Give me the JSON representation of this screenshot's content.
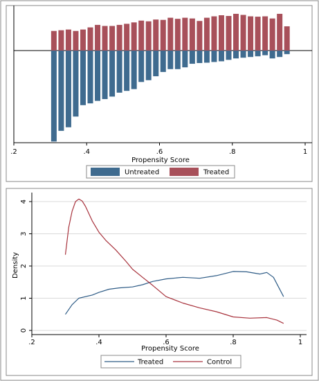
{
  "chart_data": [
    {
      "type": "bar",
      "title": "",
      "xlabel": "Propensity Score",
      "ylabel": "",
      "xlim": [
        0.2,
        1.0
      ],
      "xticks": [
        ".2",
        ".4",
        ".6",
        ".8",
        "1"
      ],
      "grid": false,
      "legend_position": "bottom",
      "legend": [
        "Untreated",
        "Treated"
      ],
      "colors": {
        "Untreated": "#3f6b8f",
        "Treated": "#a8505a"
      },
      "x": [
        0.31,
        0.33,
        0.35,
        0.37,
        0.39,
        0.41,
        0.43,
        0.45,
        0.47,
        0.49,
        0.51,
        0.53,
        0.55,
        0.57,
        0.59,
        0.61,
        0.63,
        0.65,
        0.67,
        0.69,
        0.71,
        0.73,
        0.75,
        0.77,
        0.79,
        0.81,
        0.83,
        0.85,
        0.87,
        0.89,
        0.91,
        0.93,
        0.95
      ],
      "series": [
        {
          "name": "Treated",
          "values": [
            0.55,
            0.57,
            0.59,
            0.55,
            0.59,
            0.65,
            0.72,
            0.69,
            0.69,
            0.72,
            0.75,
            0.79,
            0.84,
            0.82,
            0.87,
            0.86,
            0.92,
            0.89,
            0.92,
            0.9,
            0.83,
            0.92,
            0.96,
            0.99,
            0.97,
            1.03,
            1.0,
            0.96,
            0.95,
            0.96,
            0.9,
            1.03,
            0.68
          ]
        },
        {
          "name": "Untreated",
          "values": [
            2.55,
            2.25,
            2.15,
            1.85,
            1.53,
            1.48,
            1.41,
            1.36,
            1.29,
            1.18,
            1.13,
            1.08,
            0.88,
            0.83,
            0.72,
            0.6,
            0.52,
            0.52,
            0.47,
            0.37,
            0.35,
            0.34,
            0.32,
            0.3,
            0.26,
            0.22,
            0.2,
            0.18,
            0.16,
            0.13,
            0.22,
            0.18,
            0.1
          ]
        }
      ]
    },
    {
      "type": "line",
      "title": "",
      "xlabel": "Propensity Score",
      "ylabel": "Density",
      "xlim": [
        0.2,
        1.0
      ],
      "ylim": [
        0,
        4.2
      ],
      "xticks": [
        ".2",
        ".4",
        ".6",
        ".8",
        "1"
      ],
      "yticks": [
        "0",
        "1",
        "2",
        "3",
        "4"
      ],
      "grid": true,
      "legend_position": "bottom",
      "colors": {
        "Treated": "#2c5a85",
        "Control": "#a8323c"
      },
      "series": [
        {
          "name": "Treated",
          "x": [
            0.3,
            0.32,
            0.34,
            0.36,
            0.38,
            0.4,
            0.43,
            0.46,
            0.5,
            0.53,
            0.56,
            0.6,
            0.65,
            0.7,
            0.75,
            0.8,
            0.84,
            0.88,
            0.9,
            0.92,
            0.95
          ],
          "values": [
            0.5,
            0.8,
            1.0,
            1.05,
            1.1,
            1.18,
            1.28,
            1.32,
            1.35,
            1.42,
            1.52,
            1.6,
            1.65,
            1.62,
            1.7,
            1.83,
            1.82,
            1.75,
            1.8,
            1.65,
            1.05
          ]
        },
        {
          "name": "Control",
          "x": [
            0.3,
            0.31,
            0.32,
            0.33,
            0.34,
            0.35,
            0.36,
            0.38,
            0.4,
            0.42,
            0.45,
            0.48,
            0.5,
            0.53,
            0.56,
            0.6,
            0.65,
            0.7,
            0.75,
            0.8,
            0.85,
            0.9,
            0.93,
            0.95
          ],
          "values": [
            2.35,
            3.2,
            3.7,
            4.0,
            4.08,
            4.02,
            3.85,
            3.4,
            3.05,
            2.8,
            2.5,
            2.15,
            1.9,
            1.65,
            1.4,
            1.05,
            0.85,
            0.7,
            0.58,
            0.42,
            0.38,
            0.4,
            0.32,
            0.22
          ]
        }
      ]
    }
  ]
}
